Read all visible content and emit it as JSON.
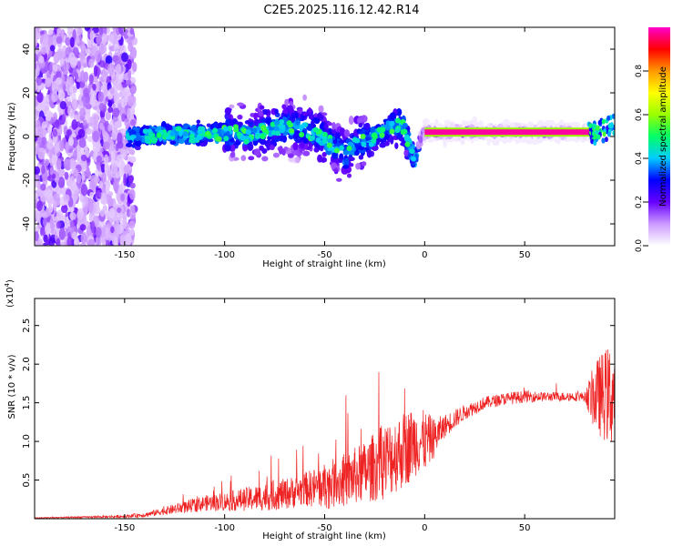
{
  "title": "C2E5.2025.116.12.42.R14",
  "chart_data": [
    {
      "type": "heatmap",
      "title": "C2E5.2025.116.12.42.R14",
      "xlabel": "Height of straight line (km)",
      "ylabel": "Frequency (Hz)",
      "xlim": [
        -195,
        95
      ],
      "ylim": [
        -50,
        50
      ],
      "xticks": [
        -150,
        -100,
        -50,
        0,
        50
      ],
      "yticks": [
        -40,
        -20,
        0,
        20,
        40
      ],
      "colorbar": {
        "label": "Normalized spectral amplitude",
        "range": [
          0,
          1
        ],
        "ticks": [
          0.0,
          0.2,
          0.4,
          0.6,
          0.8
        ],
        "tick_labels": [
          "0.0",
          "0.2",
          "0.4",
          "0.6",
          "0.8"
        ],
        "colors": [
          "#ffffff",
          "#cc99ff",
          "#6600ff",
          "#0000ff",
          "#00ccff",
          "#00ff66",
          "#99ff00",
          "#ffff00",
          "#ff9900",
          "#ff0000",
          "#ff00cc"
        ]
      },
      "centerline": {
        "x": [
          -148,
          -130,
          -110,
          -95,
          -88,
          -80,
          -70,
          -60,
          -52,
          -45,
          -40,
          -35,
          -28,
          -22,
          -17,
          -13,
          -10,
          -7,
          -5,
          -3,
          -1,
          0,
          10,
          40,
          80,
          87,
          92,
          95
        ],
        "y": [
          0,
          1,
          1,
          2,
          0,
          3,
          5,
          3,
          0,
          -5,
          -8,
          -4,
          -2,
          2,
          4,
          6,
          3,
          -6,
          -12,
          -3,
          1,
          2,
          2,
          2,
          2,
          2,
          4,
          5
        ]
      },
      "clean_band": {
        "x_range": [
          0,
          85
        ],
        "frequency": 2,
        "amplitude": 0.98
      }
    },
    {
      "type": "line",
      "xlabel": "Height of straight line (km)",
      "ylabel": "SNR (10 * v/v)",
      "y_scale_label": "(x10",
      "y_scale_exponent": "4",
      "xlim": [
        -195,
        95
      ],
      "ylim": [
        0,
        2.85
      ],
      "xticks": [
        -150,
        -100,
        -50,
        0,
        50
      ],
      "yticks": [
        0.5,
        1.0,
        1.5,
        2.0,
        2.5
      ],
      "ytick_labels": [
        "0.5",
        "1.0",
        "1.5",
        "2.0",
        "2.5"
      ],
      "color": "#ee2222",
      "series": [
        {
          "x": [
            -195,
            -170,
            -150,
            -140,
            -130,
            -120,
            -110,
            -100,
            -90,
            -80,
            -70,
            -60,
            -50,
            -40,
            -30,
            -20,
            -10,
            -5,
            0,
            5,
            10,
            20,
            30,
            40,
            50,
            60,
            70,
            80,
            85,
            90,
            95
          ],
          "y": [
            0.01,
            0.02,
            0.03,
            0.05,
            0.1,
            0.15,
            0.2,
            0.22,
            0.25,
            0.28,
            0.32,
            0.38,
            0.42,
            0.5,
            0.6,
            0.75,
            0.9,
            1.0,
            1.0,
            1.05,
            1.2,
            1.38,
            1.5,
            1.55,
            1.58,
            1.58,
            1.58,
            1.58,
            1.58,
            1.6,
            1.6
          ],
          "noise_amplitude": [
            0.005,
            0.01,
            0.02,
            0.03,
            0.05,
            0.08,
            0.1,
            0.12,
            0.15,
            0.18,
            0.2,
            0.22,
            0.3,
            0.35,
            0.4,
            0.5,
            0.5,
            0.45,
            0.4,
            0.25,
            0.15,
            0.1,
            0.08,
            0.08,
            0.08,
            0.06,
            0.06,
            0.06,
            0.45,
            0.6,
            0.7
          ]
        }
      ]
    }
  ]
}
